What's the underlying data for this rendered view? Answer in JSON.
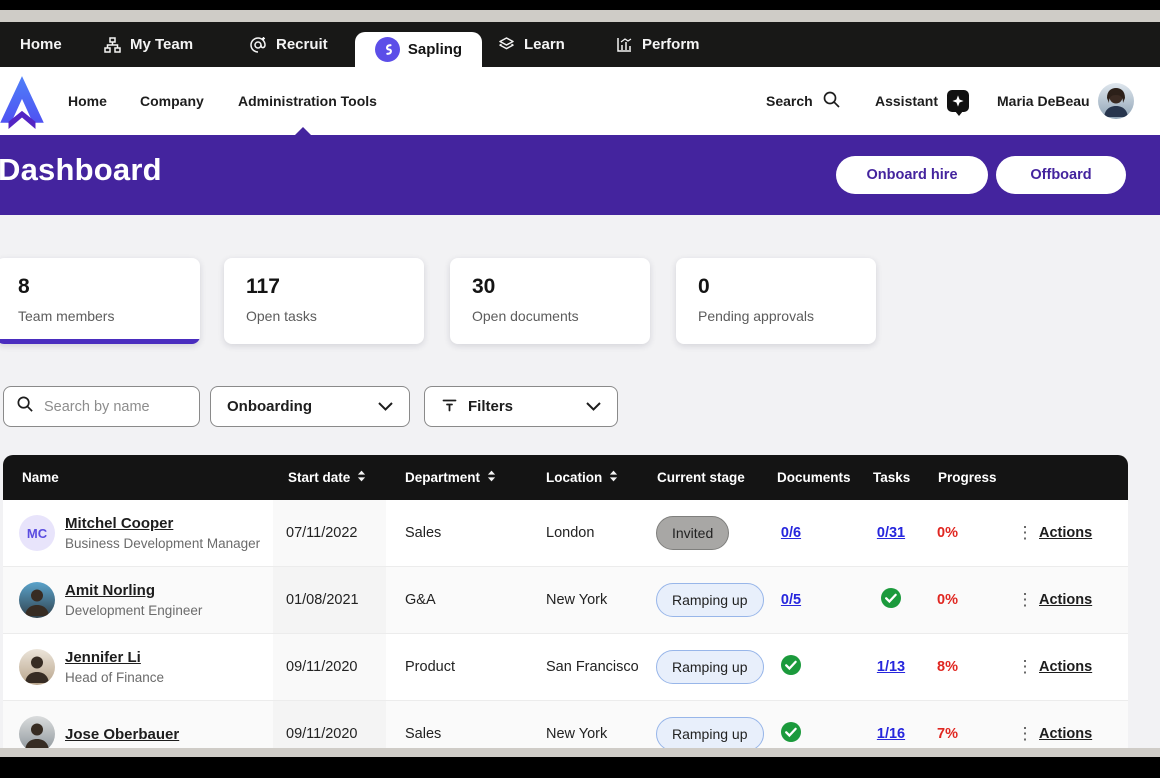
{
  "colors": {
    "brand_purple": "#44249e",
    "accent_bar": "#4a2dbf",
    "link_blue": "#2626dd",
    "alert_red": "#e02620",
    "success_green": "#1b9a3c"
  },
  "top_tabs": {
    "items": [
      {
        "label": "Home",
        "active": false
      },
      {
        "label": "My Team",
        "icon": "org-chart-icon",
        "active": false
      },
      {
        "label": "Recruit",
        "icon": "recruit-at-icon",
        "active": false
      },
      {
        "label": "Sapling",
        "icon": "sapling-logo-icon",
        "active": true
      },
      {
        "label": "Learn",
        "icon": "learn-layers-icon",
        "active": false
      },
      {
        "label": "Perform",
        "icon": "perform-chart-icon",
        "active": false
      }
    ]
  },
  "nav": {
    "items": [
      {
        "label": "Home",
        "active": false
      },
      {
        "label": "Company",
        "active": false
      },
      {
        "label": "Administration Tools",
        "active": true
      }
    ],
    "search_label": "Search",
    "assistant_label": "Assistant",
    "user_name": "Maria DeBeau"
  },
  "header": {
    "title": "Dashboard",
    "onboard_button": "Onboard hire",
    "offboard_button": "Offboard"
  },
  "stats": [
    {
      "value": "8",
      "label": "Team members",
      "active": true
    },
    {
      "value": "117",
      "label": "Open tasks",
      "active": false
    },
    {
      "value": "30",
      "label": "Open documents",
      "active": false
    },
    {
      "value": "0",
      "label": "Pending approvals",
      "active": false
    }
  ],
  "filters": {
    "search_placeholder": "Search by name",
    "view_select_value": "Onboarding",
    "filters_label": "Filters"
  },
  "table": {
    "columns": [
      {
        "label": "Name",
        "sortable": false
      },
      {
        "label": "Start date",
        "sortable": true
      },
      {
        "label": "Department",
        "sortable": true
      },
      {
        "label": "Location",
        "sortable": true
      },
      {
        "label": "Current stage",
        "sortable": false
      },
      {
        "label": "Documents",
        "sortable": false
      },
      {
        "label": "Tasks",
        "sortable": false
      },
      {
        "label": "Progress",
        "sortable": false
      }
    ],
    "actions_label": "Actions",
    "rows": [
      {
        "avatar": {
          "type": "initials",
          "text": "MC",
          "palette": "pal-initials"
        },
        "name": "Mitchel Cooper",
        "job_title": "Business Development Manager",
        "start_date": "07/11/2022",
        "department": "Sales",
        "location": "London",
        "stage": {
          "label": "Invited",
          "variant": "gray"
        },
        "documents": {
          "kind": "link",
          "text": "0/6"
        },
        "tasks": {
          "kind": "link",
          "text": "0/31"
        },
        "progress": "0%"
      },
      {
        "avatar": {
          "type": "photo",
          "palette": "pal-warm-dark"
        },
        "name": "Amit Norling",
        "job_title": "Development Engineer",
        "start_date": "01/08/2021",
        "department": "G&A",
        "location": "New York",
        "stage": {
          "label": "Ramping up",
          "variant": "blue"
        },
        "documents": {
          "kind": "link",
          "text": "0/5"
        },
        "tasks": {
          "kind": "check"
        },
        "progress": "0%"
      },
      {
        "avatar": {
          "type": "photo",
          "palette": "pal-light"
        },
        "name": "Jennifer Li",
        "job_title": "Head of Finance",
        "start_date": "09/11/2020",
        "department": "Product",
        "location": "San Francisco",
        "stage": {
          "label": "Ramping up",
          "variant": "blue"
        },
        "documents": {
          "kind": "check"
        },
        "tasks": {
          "kind": "link",
          "text": "1/13"
        },
        "progress": "8%"
      },
      {
        "avatar": {
          "type": "photo",
          "palette": "pal-gray"
        },
        "name": "Jose Oberbauer",
        "job_title": "",
        "start_date": "09/11/2020",
        "department": "Sales",
        "location": "New York",
        "stage": {
          "label": "Ramping up",
          "variant": "blue"
        },
        "documents": {
          "kind": "check"
        },
        "tasks": {
          "kind": "link",
          "text": "1/16"
        },
        "progress": "7%"
      }
    ]
  }
}
